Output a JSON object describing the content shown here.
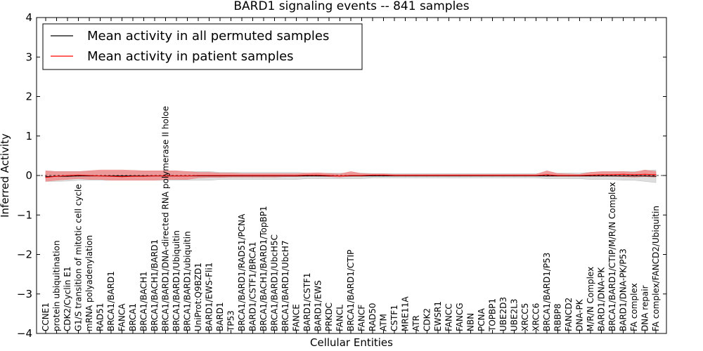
{
  "chart_data": {
    "type": "line",
    "title": "BARD1 signaling events -- 841 samples",
    "xlabel": "Cellular Entities",
    "ylabel": "Inferred Activity",
    "ylim": [
      -4,
      4
    ],
    "yticks": [
      4,
      3,
      2,
      1,
      0,
      -1,
      -2,
      -3,
      -4
    ],
    "ytick_labels": [
      "4",
      "3",
      "2",
      "1",
      "0",
      "−1",
      "−2",
      "−3",
      "−4"
    ],
    "grid": false,
    "legend_position": "top-left",
    "categories": [
      "CCNE1",
      "protein ubiquitination",
      "CDK2/Cyclin E1",
      "G1/S transition of mitotic cell cycle",
      "mRNA polyadenylation",
      "RAD51",
      "BRCA1/BARD1",
      "FANCA",
      "BRCA1",
      "BRCA1/BACH1",
      "BRCA1/BACH1/BARD1",
      "BRCA1/BARD1/DNA-directed RNA polymerase II holoe",
      "BRCA1/BARD1/Ubiquitin",
      "BRCA1/BARD1/ubiquitin",
      "UniProt:Q9BZD1",
      "BARD1/EWS-Fli1",
      "BARD1",
      "TP53",
      "BRCA1/BARD1/RAD51/PCNA",
      "BARD1/CSTF1/BRCA1",
      "BRCA1/BACH1/BARD1/TopBP1",
      "BRCA1/BARD1/UbcH5C",
      "BRCA1/BARD1/UbcH7",
      "FANCE",
      "BARD1/CSTF1",
      "BARD1/EWS",
      "PRKDC",
      "FANCL",
      "BRCA1/BARD1/CTIP",
      "FANCF",
      "RAD50",
      "ATM",
      "CSTF1",
      "MRE11A",
      "ATR",
      "CDK2",
      "EWSR1",
      "FANCC",
      "FANCG",
      "NBN",
      "PCNA",
      "TOPBP1",
      "UBE2D3",
      "UBE2L3",
      "XRCC5",
      "XRCC6",
      "BRCA1/BARD1/P53",
      "RBBP8",
      "FANCD2",
      "DNA-PK",
      "M/R/N Complex",
      "BARD1/DNA-PK",
      "BRCA1/BARD1/CTIP/M/R/N Complex",
      "BARD1/DNA-PK/P53",
      "FA complex",
      "DNA repair",
      "FA complex/FANCD2/Ubiquitin"
    ],
    "series": [
      {
        "name": "Mean activity in all permuted samples",
        "color": "#000000",
        "values": [
          -0.03,
          -0.02,
          -0.02,
          -0.01,
          -0.01,
          -0.01,
          -0.01,
          -0.01,
          -0.01,
          -0.01,
          -0.01,
          -0.01,
          -0.01,
          -0.01,
          -0.01,
          -0.01,
          -0.01,
          -0.01,
          -0.01,
          -0.01,
          -0.01,
          -0.01,
          -0.01,
          -0.01,
          -0.01,
          -0.01,
          -0.01,
          -0.01,
          -0.01,
          -0.01,
          -0.01,
          -0.01,
          -0.01,
          -0.01,
          -0.01,
          -0.01,
          -0.01,
          -0.01,
          -0.01,
          -0.01,
          -0.01,
          -0.01,
          -0.01,
          -0.01,
          -0.01,
          -0.01,
          -0.01,
          -0.01,
          -0.01,
          -0.01,
          -0.01,
          -0.01,
          -0.01,
          -0.01,
          -0.01,
          -0.01,
          -0.02
        ],
        "band_lower": [
          -0.15,
          -0.15,
          -0.14,
          -0.12,
          -0.12,
          -0.12,
          -0.12,
          -0.12,
          -0.12,
          -0.12,
          -0.12,
          -0.12,
          -0.12,
          -0.12,
          -0.12,
          -0.12,
          -0.1,
          -0.1,
          -0.1,
          -0.1,
          -0.1,
          -0.1,
          -0.1,
          -0.1,
          -0.08,
          -0.08,
          -0.08,
          -0.08,
          -0.08,
          -0.08,
          -0.06,
          -0.06,
          -0.06,
          -0.06,
          -0.06,
          -0.06,
          -0.06,
          -0.06,
          -0.06,
          -0.06,
          -0.06,
          -0.06,
          -0.06,
          -0.06,
          -0.06,
          -0.06,
          -0.08,
          -0.08,
          -0.08,
          -0.08,
          -0.1,
          -0.1,
          -0.1,
          -0.12,
          -0.12,
          -0.15,
          -0.18
        ],
        "band_upper": [
          0.1,
          0.1,
          0.1,
          0.1,
          0.1,
          0.1,
          0.1,
          0.1,
          0.1,
          0.1,
          0.1,
          0.1,
          0.1,
          0.1,
          0.1,
          0.1,
          0.08,
          0.08,
          0.08,
          0.08,
          0.08,
          0.08,
          0.08,
          0.08,
          0.06,
          0.06,
          0.06,
          0.06,
          0.06,
          0.06,
          0.05,
          0.05,
          0.05,
          0.05,
          0.05,
          0.05,
          0.05,
          0.05,
          0.05,
          0.05,
          0.05,
          0.05,
          0.05,
          0.05,
          0.05,
          0.05,
          0.06,
          0.06,
          0.06,
          0.06,
          0.08,
          0.08,
          0.08,
          0.1,
          0.1,
          0.12,
          0.14
        ]
      },
      {
        "name": "Mean activity in patient samples",
        "color": "#ff0000",
        "values": [
          -0.05,
          -0.02,
          0.0,
          0.01,
          0.0,
          -0.01,
          -0.02,
          -0.03,
          -0.02,
          -0.02,
          -0.01,
          -0.01,
          -0.01,
          -0.01,
          0.0,
          0.0,
          0.0,
          0.0,
          0.0,
          0.0,
          0.0,
          0.0,
          0.0,
          0.0,
          0.01,
          0.01,
          0.0,
          -0.01,
          0.0,
          0.0,
          0.01,
          0.01,
          0.0,
          0.0,
          0.0,
          0.0,
          0.0,
          0.0,
          0.0,
          0.0,
          0.0,
          0.0,
          0.0,
          0.0,
          0.0,
          0.0,
          0.02,
          0.0,
          0.0,
          0.0,
          0.01,
          0.02,
          0.02,
          0.03,
          0.02,
          0.03,
          0.02
        ],
        "band_lower": [
          -0.15,
          -0.12,
          -0.1,
          -0.08,
          -0.1,
          -0.1,
          -0.12,
          -0.12,
          -0.12,
          -0.12,
          -0.12,
          -0.1,
          -0.1,
          -0.1,
          -0.06,
          -0.05,
          -0.05,
          -0.04,
          -0.04,
          -0.04,
          -0.04,
          -0.04,
          -0.03,
          -0.03,
          -0.02,
          -0.02,
          -0.03,
          -0.04,
          -0.02,
          -0.02,
          -0.01,
          -0.01,
          -0.01,
          -0.01,
          -0.01,
          -0.01,
          -0.01,
          -0.01,
          -0.01,
          -0.01,
          -0.01,
          -0.01,
          -0.01,
          -0.01,
          -0.01,
          -0.01,
          -0.02,
          -0.02,
          -0.02,
          -0.02,
          -0.02,
          -0.02,
          -0.02,
          -0.03,
          -0.04,
          -0.03,
          -0.04
        ],
        "band_upper": [
          0.12,
          0.1,
          0.1,
          0.1,
          0.12,
          0.14,
          0.14,
          0.14,
          0.13,
          0.12,
          0.12,
          0.12,
          0.12,
          0.1,
          0.08,
          0.08,
          0.06,
          0.06,
          0.05,
          0.05,
          0.05,
          0.05,
          0.05,
          0.05,
          0.06,
          0.07,
          0.05,
          0.04,
          0.1,
          0.05,
          0.04,
          0.04,
          0.03,
          0.03,
          0.03,
          0.03,
          0.03,
          0.03,
          0.03,
          0.03,
          0.03,
          0.03,
          0.03,
          0.03,
          0.03,
          0.03,
          0.12,
          0.05,
          0.04,
          0.03,
          0.08,
          0.1,
          0.1,
          0.1,
          0.08,
          0.14,
          0.1
        ]
      }
    ]
  }
}
